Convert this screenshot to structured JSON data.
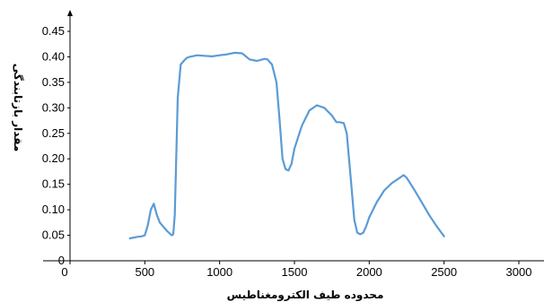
{
  "chart_data": {
    "type": "line",
    "title": "",
    "xlabel": "محدوده طيف الکترومغناطيس",
    "ylabel": "مقدار بازتابندگی",
    "xlim": [
      0,
      3000
    ],
    "ylim": [
      0,
      0.45
    ],
    "x_ticks": [
      "0",
      "500",
      "1000",
      "1500",
      "2000",
      "2500",
      "3000"
    ],
    "y_ticks": [
      "0",
      "0.05",
      "0.10",
      "0.15",
      "0.20",
      "0.25",
      "0.30",
      "0.35",
      "0.40",
      "0.45"
    ],
    "grid": false,
    "legend": "none",
    "line_color": "#5b9bd5",
    "series": [
      {
        "x": [
          400,
          450,
          480,
          500,
          520,
          540,
          560,
          580,
          600,
          650,
          680,
          690,
          700,
          710,
          720,
          740,
          760,
          780,
          800,
          850,
          900,
          950,
          1000,
          1050,
          1100,
          1150,
          1200,
          1250,
          1300,
          1320,
          1350,
          1380,
          1400,
          1420,
          1440,
          1460,
          1480,
          1500,
          1550,
          1600,
          1650,
          1700,
          1750,
          1780,
          1800,
          1830,
          1850,
          1880,
          1900,
          1920,
          1940,
          1960,
          1980,
          2000,
          2050,
          2100,
          2150,
          2200,
          2230,
          2250,
          2300,
          2350,
          2400,
          2450,
          2500
        ],
        "y": [
          0.044,
          0.047,
          0.048,
          0.05,
          0.07,
          0.1,
          0.112,
          0.09,
          0.075,
          0.058,
          0.05,
          0.052,
          0.09,
          0.2,
          0.32,
          0.385,
          0.392,
          0.398,
          0.4,
          0.403,
          0.402,
          0.401,
          0.403,
          0.405,
          0.408,
          0.407,
          0.395,
          0.392,
          0.396,
          0.395,
          0.385,
          0.35,
          0.28,
          0.2,
          0.18,
          0.177,
          0.19,
          0.22,
          0.265,
          0.295,
          0.305,
          0.3,
          0.285,
          0.272,
          0.272,
          0.27,
          0.25,
          0.15,
          0.08,
          0.055,
          0.052,
          0.055,
          0.068,
          0.085,
          0.115,
          0.138,
          0.152,
          0.162,
          0.168,
          0.163,
          0.14,
          0.115,
          0.09,
          0.068,
          0.048
        ]
      }
    ]
  }
}
